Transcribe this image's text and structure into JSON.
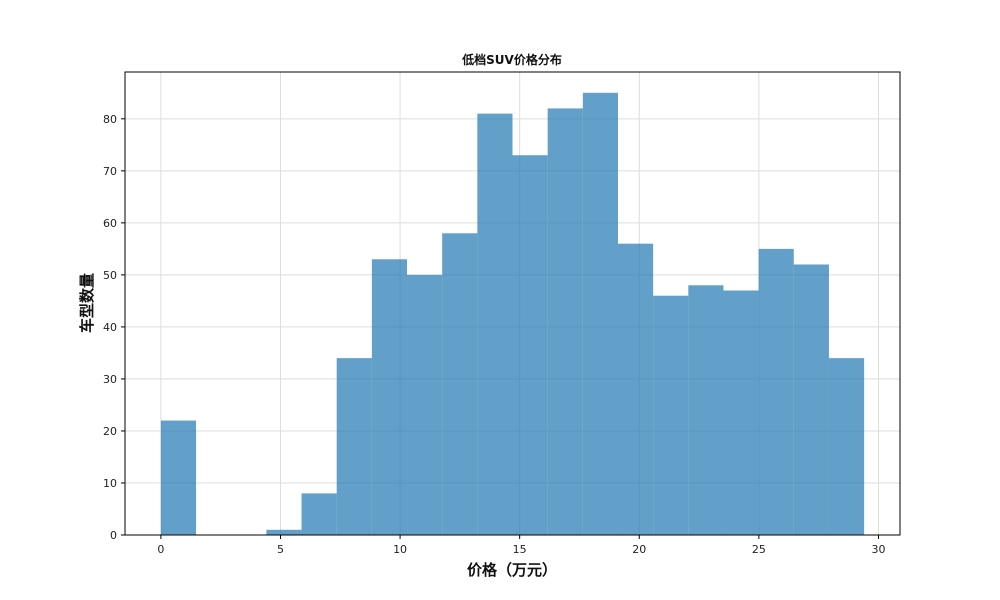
{
  "chart_data": {
    "type": "bar",
    "title": "低档SUV价格分布",
    "xlabel": "价格（万元）",
    "ylabel": "车型数量",
    "xlim": [
      -1.5,
      30.9
    ],
    "ylim": [
      0,
      89
    ],
    "xticks": [
      0,
      5,
      10,
      15,
      20,
      25,
      30
    ],
    "yticks": [
      0,
      10,
      20,
      30,
      40,
      50,
      60,
      70,
      80
    ],
    "grid": true,
    "legend": "none",
    "bin_edges": [
      0.0,
      1.47,
      2.94,
      4.41,
      5.88,
      7.35,
      8.82,
      10.29,
      11.76,
      13.23,
      14.7,
      16.17,
      17.64,
      19.11,
      20.58,
      22.05,
      23.52,
      24.99,
      26.46,
      27.93,
      29.4
    ],
    "counts": [
      22,
      0,
      0,
      1,
      8,
      34,
      53,
      50,
      58,
      81,
      73,
      82,
      85,
      56,
      46,
      48,
      47,
      55,
      52,
      34
    ],
    "bar_color": "#1f77b4",
    "bar_opacity": 0.7
  }
}
